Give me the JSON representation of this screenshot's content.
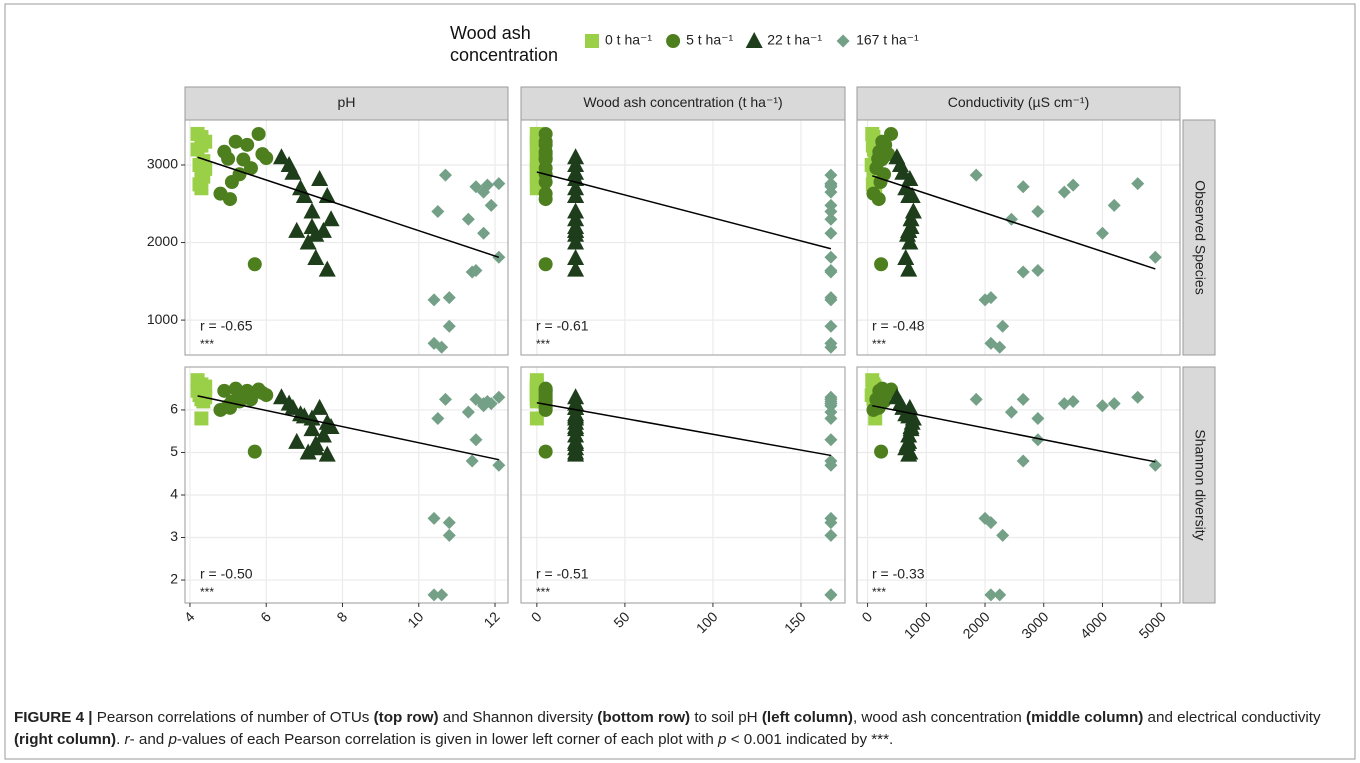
{
  "chart_data": {
    "type": "scatter",
    "legend_title": "Wood ash concentration",
    "grid": true,
    "groups": [
      {
        "name": "0 t ha⁻¹",
        "color": "#9ad048",
        "marker": "square",
        "x": [
          [
            4.2,
            4.3,
            4.4,
            4.3,
            4.2,
            4.35,
            4.25,
            4.4,
            4.3,
            4.35,
            4.25,
            4.3
          ],
          [
            0,
            0,
            0,
            0,
            0,
            0,
            0,
            0,
            0,
            0,
            0,
            0
          ],
          [
            80,
            100,
            120,
            90,
            110,
            130,
            70,
            140,
            100,
            120,
            90,
            130
          ]
        ],
        "y": [
          [
            3400,
            3360,
            3300,
            3250,
            3200,
            3050,
            3000,
            2950,
            2900,
            2850,
            2750,
            2700
          ],
          [
            6.7,
            6.6,
            6.55,
            6.5,
            6.45,
            6.4,
            6.35,
            6.3,
            6.25,
            6.2,
            6.5,
            5.8
          ]
        ]
      },
      {
        "name": "5 t ha⁻¹",
        "color": "#4d7f1e",
        "marker": "circle",
        "x": [
          [
            4.9,
            5.2,
            5.5,
            5.8,
            6.0,
            5.0,
            5.3,
            5.6,
            5.9,
            4.8,
            5.1,
            5.4,
            5.7,
            5.05
          ],
          [
            5,
            5,
            5,
            5,
            5,
            5,
            5,
            5,
            5,
            5,
            5,
            5,
            5,
            5
          ],
          [
            200,
            250,
            300,
            400,
            260,
            180,
            280,
            150,
            350,
            100,
            220,
            240,
            230,
            190
          ]
        ],
        "y": [
          [
            3170,
            3300,
            3260,
            3400,
            3090,
            3080,
            2880,
            2960,
            3140,
            2630,
            2780,
            3070,
            1720,
            2560
          ],
          [
            6.45,
            6.5,
            6.45,
            6.48,
            6.35,
            6.1,
            6.2,
            6.25,
            6.4,
            6.0,
            6.2,
            6.3,
            5.02,
            6.05
          ]
        ]
      },
      {
        "name": "22 t ha⁻¹",
        "color": "#1d3d1b",
        "marker": "triangle",
        "x": [
          [
            6.4,
            6.6,
            6.7,
            6.9,
            7.0,
            7.4,
            7.2,
            7.6,
            7.7,
            7.5,
            7.3,
            7.1,
            6.8,
            7.3,
            7.6,
            7.2
          ],
          [
            22,
            22,
            22,
            22,
            22,
            22,
            22,
            22,
            22,
            22,
            22,
            22,
            22,
            22,
            22,
            22
          ],
          [
            500,
            560,
            600,
            650,
            700,
            720,
            780,
            760,
            740,
            700,
            680,
            720,
            700,
            650,
            700,
            740
          ]
        ],
        "y": [
          [
            3100,
            3000,
            2900,
            2700,
            2600,
            2820,
            2400,
            2600,
            2300,
            2150,
            2100,
            2000,
            2150,
            1800,
            1650,
            2200
          ],
          [
            6.3,
            6.15,
            6.05,
            5.9,
            5.85,
            6.05,
            5.8,
            5.7,
            5.6,
            5.4,
            5.2,
            5.0,
            5.25,
            5.1,
            4.95,
            5.55
          ]
        ]
      },
      {
        "name": "167 t ha⁻¹",
        "color": "#74a087",
        "marker": "diamond",
        "x": [
          [
            10.7,
            10.5,
            11.3,
            11.5,
            11.7,
            11.8,
            12.1,
            11.9,
            11.7,
            12.1,
            11.4,
            11.5,
            10.8,
            10.4,
            10.8,
            10.4,
            10.6
          ],
          [
            167,
            167,
            167,
            167,
            167,
            167,
            167,
            167,
            167,
            167,
            167,
            167,
            167,
            167,
            167,
            167,
            167
          ],
          [
            1850,
            2900,
            2450,
            2650,
            3350,
            3500,
            4600,
            4200,
            4000,
            4900,
            2650,
            2900,
            2100,
            2000,
            2300,
            2100,
            2250
          ]
        ],
        "y": [
          [
            2870,
            2400,
            2300,
            2720,
            2650,
            2740,
            2760,
            2480,
            2120,
            1810,
            1620,
            1640,
            1290,
            1260,
            920,
            700,
            650
          ],
          [
            6.25,
            5.8,
            5.95,
            6.25,
            6.15,
            6.2,
            6.3,
            6.15,
            6.1,
            4.7,
            4.8,
            5.3,
            3.35,
            3.45,
            3.05,
            1.65,
            1.65
          ]
        ]
      }
    ],
    "columns": [
      {
        "label": "pH",
        "xlim": [
          3.87,
          12.34
        ],
        "xticks": [
          4,
          6,
          8,
          10,
          12
        ]
      },
      {
        "label": "Wood ash concentration (t ha⁻¹)",
        "xlim": [
          -9,
          175
        ],
        "xticks": [
          0,
          50,
          100,
          150
        ]
      },
      {
        "label": "Conductivity (µS cm⁻¹)",
        "xlim": [
          -180,
          5320
        ],
        "xticks": [
          0,
          1000,
          2000,
          3000,
          4000,
          5000
        ]
      }
    ],
    "rows": [
      {
        "label": "Observed Species",
        "ylim": [
          550,
          3580
        ],
        "yticks": [
          1000,
          2000,
          3000
        ]
      },
      {
        "label": "Shannon diversity",
        "ylim": [
          1.46,
          7.01
        ],
        "yticks": [
          2,
          3,
          4,
          5,
          6
        ]
      }
    ],
    "panels": [
      {
        "row": 0,
        "col": 0,
        "r": "r = -0.65",
        "sig": "***",
        "fit": {
          "x": [
            4.2,
            12.1
          ],
          "y": [
            3100,
            1810
          ]
        }
      },
      {
        "row": 0,
        "col": 1,
        "r": "r = -0.61",
        "sig": "***",
        "fit": {
          "x": [
            0,
            167
          ],
          "y": [
            2910,
            1920
          ]
        }
      },
      {
        "row": 0,
        "col": 2,
        "r": "r = -0.48",
        "sig": "***",
        "fit": {
          "x": [
            80,
            4900
          ],
          "y": [
            2860,
            1660
          ]
        }
      },
      {
        "row": 1,
        "col": 0,
        "r": "r = -0.50",
        "sig": "***",
        "fit": {
          "x": [
            4.2,
            12.1
          ],
          "y": [
            6.33,
            4.83
          ]
        }
      },
      {
        "row": 1,
        "col": 1,
        "r": "r = -0.51",
        "sig": "***",
        "fit": {
          "x": [
            0,
            167
          ],
          "y": [
            6.17,
            4.93
          ]
        }
      },
      {
        "row": 1,
        "col": 2,
        "r": "r = -0.33",
        "sig": "***",
        "fit": {
          "x": [
            80,
            4900
          ],
          "y": [
            6.1,
            4.78
          ]
        }
      }
    ]
  },
  "caption": [
    "FIGURE 4 |",
    " Pearson correlations of number of OTUs ",
    "(top row)",
    " and Shannon diversity ",
    "(bottom row)",
    " to soil pH ",
    "(left column)",
    ", wood ash concentration ",
    "(middle column)",
    " and electrical conductivity ",
    "(right column)",
    ". ",
    "r",
    "- and ",
    "p",
    "-values of each Pearson correlation is given in lower left corner of each plot with ",
    "p",
    " < 0.001 indicated by ***."
  ]
}
